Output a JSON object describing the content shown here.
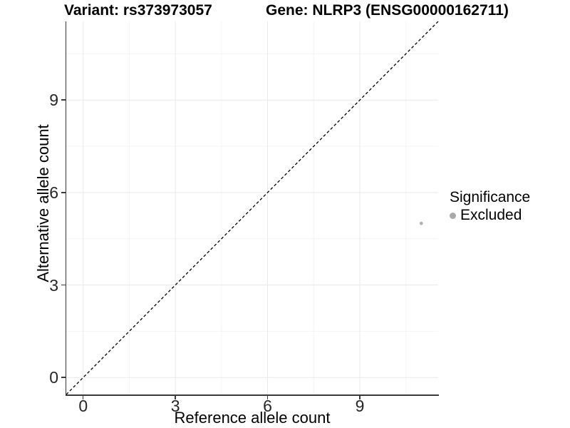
{
  "chart_data": {
    "type": "scatter",
    "titles": {
      "left": "Variant: rs373973057",
      "right": "Gene: NLRP3 (ENSG00000162711)"
    },
    "xlabel": "Reference allele count",
    "ylabel": "Alternative allele count",
    "xlim": [
      -0.55,
      11.55
    ],
    "ylim": [
      -0.55,
      11.55
    ],
    "x_ticks": [
      0,
      3,
      6,
      9
    ],
    "y_ticks": [
      0,
      3,
      6,
      9
    ],
    "grid": {
      "major": [
        0,
        3,
        6,
        9
      ],
      "minor": [
        1.5,
        4.5,
        7.5,
        10.5
      ]
    },
    "identity_line": {
      "equation": "y = x",
      "style": "dashed",
      "color": "#000000"
    },
    "series": [
      {
        "name": "Excluded",
        "color": "#b2b2b2",
        "points": [
          {
            "x": 11,
            "y": 5
          }
        ]
      }
    ],
    "legend": {
      "title": "Significance",
      "position": "right",
      "entries": [
        {
          "label": "Excluded",
          "color": "#a9a9a9"
        }
      ]
    },
    "colors": {
      "axis_line": "#3a3a3a",
      "tick_label": "#262626",
      "grid_major": "#e9e9e9",
      "grid_minor": "#f4f4f4",
      "background": "#ffffff"
    }
  }
}
